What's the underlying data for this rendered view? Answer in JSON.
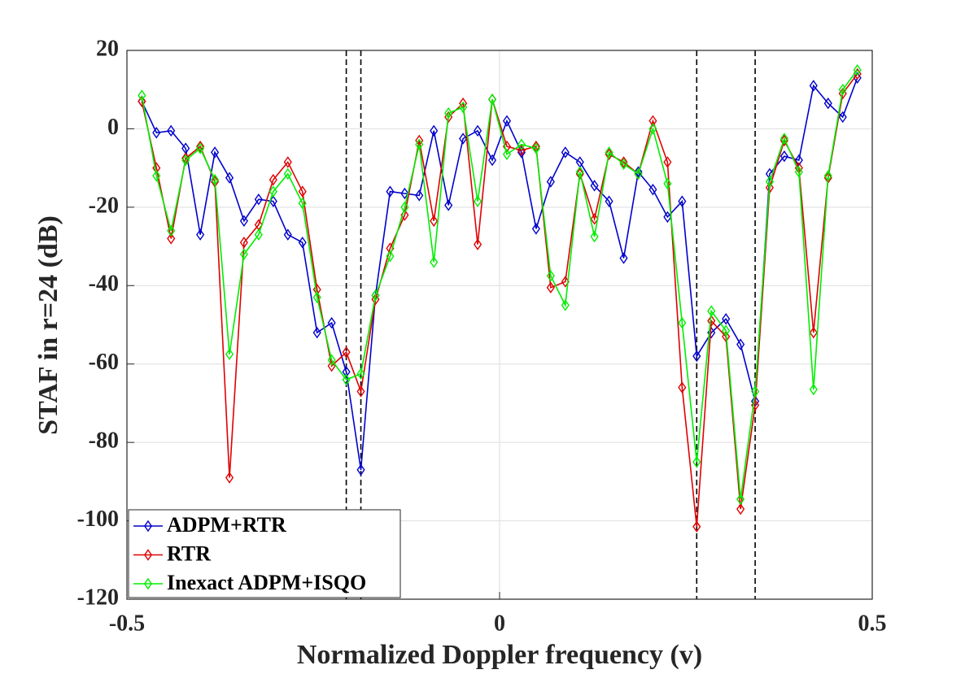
{
  "chart_data": {
    "type": "line",
    "xlabel": "Normalized Doppler frequency (v)",
    "ylabel": "STAF in r=24 (dB)",
    "xlim": [
      -0.5,
      0.5
    ],
    "xticks": [
      -0.5,
      0,
      0.5
    ],
    "ylim": [
      -120,
      20
    ],
    "yticks": [
      -120,
      -100,
      -80,
      -60,
      -40,
      -20,
      0,
      20
    ],
    "grid": true,
    "legend": "lower left",
    "marker": "diamond",
    "vlines": [
      -0.2057,
      -0.1861,
      0.2645,
      0.3429
    ],
    "x": [
      -0.48,
      -0.4604,
      -0.4408,
      -0.4212,
      -0.4016,
      -0.382,
      -0.3624,
      -0.3429,
      -0.3233,
      -0.3037,
      -0.2841,
      -0.2645,
      -0.2449,
      -0.2253,
      -0.2057,
      -0.1861,
      -0.1665,
      -0.1469,
      -0.1273,
      -0.1078,
      -0.0882,
      -0.0686,
      -0.049,
      -0.0294,
      -0.0098,
      0.0098,
      0.0294,
      0.049,
      0.0686,
      0.0882,
      0.1078,
      0.1273,
      0.1469,
      0.1665,
      0.1861,
      0.2057,
      0.2253,
      0.2449,
      0.2645,
      0.2841,
      0.3037,
      0.3233,
      0.3429,
      0.3624,
      0.382,
      0.4016,
      0.4212,
      0.4408,
      0.4604,
      0.48
    ],
    "series": [
      {
        "name": "ADPM+RTR",
        "color": "#0000cc",
        "values": [
          7,
          -1,
          -0.5,
          -5,
          -27,
          -6,
          -12.5,
          -23.5,
          -18,
          -18.5,
          -27,
          -29,
          -52,
          -49.5,
          -62,
          -87,
          -42.5,
          -16,
          -16.5,
          -17,
          -0.5,
          -19.5,
          -2.5,
          -0.5,
          -8,
          2,
          -6,
          -25.5,
          -13.5,
          -6,
          -8.5,
          -14.5,
          -18.5,
          -33,
          -11,
          -15.5,
          -22.5,
          -18.5,
          -58,
          -52,
          -48.5,
          -55,
          -69.5,
          -11.5,
          -7,
          -8,
          11,
          6.5,
          3,
          13
        ]
      },
      {
        "name": "RTR",
        "color": "#e00000",
        "values": [
          7,
          -10,
          -28,
          -7.5,
          -4.5,
          -13.5,
          -89,
          -29,
          -24.5,
          -13,
          -8.5,
          -16,
          -41,
          -60.5,
          -57,
          -67,
          -43.5,
          -30.5,
          -22,
          -3,
          -23.5,
          3,
          6.5,
          -29.5,
          7.5,
          -4.5,
          -5.5,
          -4.5,
          -40.5,
          -39,
          -11.5,
          -23,
          -6.5,
          -8.5,
          -11.5,
          2,
          -8.5,
          -66,
          -101.5,
          -49,
          -53,
          -97,
          -70.5,
          -15,
          -3,
          -10,
          -52,
          -12.5,
          9,
          14
        ]
      },
      {
        "name": "Inexact ADPM+ISQO",
        "color": "#00ee00",
        "values": [
          8.5,
          -12,
          -26,
          -8,
          -5,
          -13,
          -57.5,
          -32,
          -27,
          -16,
          -11.5,
          -19,
          -43,
          -59,
          -64,
          -62.5,
          -42.5,
          -32.5,
          -20,
          -4,
          -34,
          4,
          5.5,
          -18.5,
          7.5,
          -6.5,
          -4,
          -5,
          -37.5,
          -45,
          -11,
          -27.5,
          -6,
          -9,
          -11.5,
          0,
          -14,
          -49.5,
          -85,
          -46.5,
          -51.5,
          -94.5,
          -67,
          -13.5,
          -2.5,
          -11,
          -66.5,
          -12,
          10,
          15
        ]
      }
    ]
  }
}
